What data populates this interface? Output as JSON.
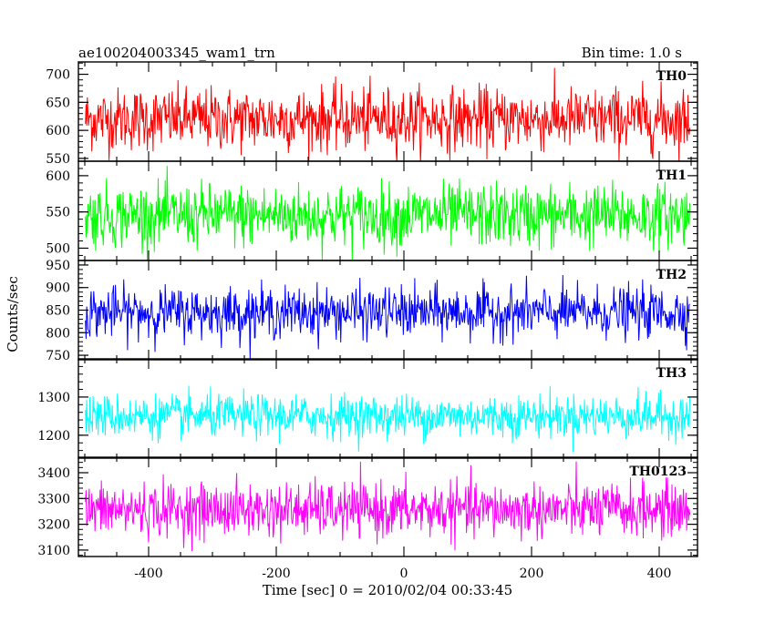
{
  "chart_data": {
    "type": "line",
    "title": "ae100204003345_wam1_trn",
    "subtitle": "Bin time: 1.0 s",
    "xlabel": "Time [sec] 0 = 2010/02/04 00:33:45",
    "ylabel": "Counts/sec",
    "xlim": [
      -510,
      460
    ],
    "x_ticks": [
      -400,
      -200,
      0,
      200,
      400
    ],
    "data_x_range": [
      -499,
      448
    ],
    "bin_time_s": 1.0,
    "series": [
      {
        "name": "TH0",
        "color": "#ff0000",
        "ylim": [
          545,
          722
        ],
        "y_ticks": [
          550,
          600,
          650,
          700
        ],
        "mean": 620,
        "noise_amplitude": 45
      },
      {
        "name": "TH1",
        "color": "#00ff00",
        "ylim": [
          483,
          620
        ],
        "y_ticks": [
          500,
          550,
          600
        ],
        "mean": 545,
        "noise_amplitude": 35
      },
      {
        "name": "TH2",
        "color": "#0000ff",
        "ylim": [
          740,
          960
        ],
        "y_ticks": [
          750,
          800,
          850,
          900,
          950
        ],
        "mean": 845,
        "noise_amplitude": 45
      },
      {
        "name": "TH3",
        "color": "#00ffff",
        "ylim": [
          1140,
          1400
        ],
        "y_ticks": [
          1200,
          1300
        ],
        "mean": 1250,
        "noise_amplitude": 45
      },
      {
        "name": "TH0123",
        "color": "#ff00ff",
        "ylim": [
          3075,
          3460
        ],
        "y_ticks": [
          3100,
          3200,
          3300,
          3400
        ],
        "mean": 3255,
        "noise_amplitude": 85
      }
    ]
  }
}
